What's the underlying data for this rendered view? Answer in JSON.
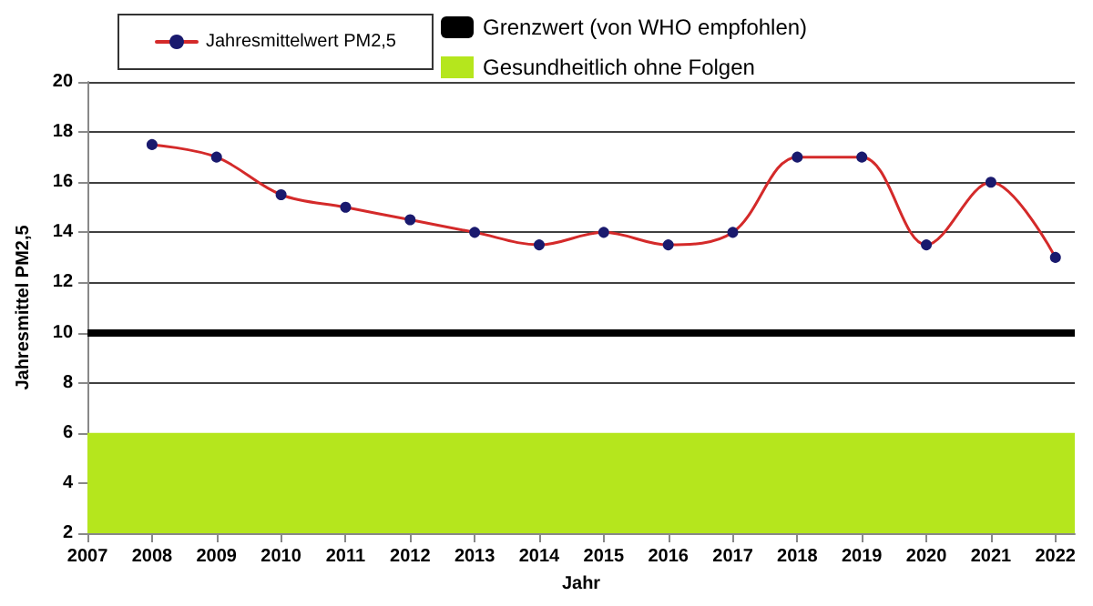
{
  "chart_data": {
    "type": "line",
    "xlabel": "Jahr",
    "ylabel": "Jahresmittel PM2,5",
    "x": [
      2008,
      2009,
      2010,
      2011,
      2012,
      2013,
      2014,
      2015,
      2016,
      2017,
      2018,
      2019,
      2020,
      2021,
      2022
    ],
    "series": [
      {
        "name": "Jahresmittelwert PM2,5",
        "color": "#d42a2a",
        "values": [
          17.5,
          17,
          15.5,
          15,
          14.5,
          14,
          13.5,
          14,
          13.5,
          14,
          17,
          17,
          13.5,
          16,
          13
        ]
      }
    ],
    "xlim": [
      2007,
      2022.3
    ],
    "xticks": [
      2007,
      2008,
      2009,
      2010,
      2011,
      2012,
      2013,
      2014,
      2015,
      2016,
      2017,
      2018,
      2019,
      2020,
      2021,
      2022
    ],
    "ylim": [
      2,
      20
    ],
    "yticks": [
      2,
      4,
      6,
      8,
      10,
      12,
      14,
      16,
      18,
      20
    ],
    "ref_lines": [
      {
        "axis": "y",
        "value": 10,
        "label": "Grenzwert (von WHO empfohlen)",
        "color": "#000000"
      }
    ],
    "bands": [
      {
        "axis": "y",
        "from": 2,
        "to": 6,
        "label": "Gesundheitlich ohne Folgen",
        "color": "#b5e61d"
      }
    ],
    "grid": "y",
    "legend": "top left",
    "marker": "circle"
  }
}
